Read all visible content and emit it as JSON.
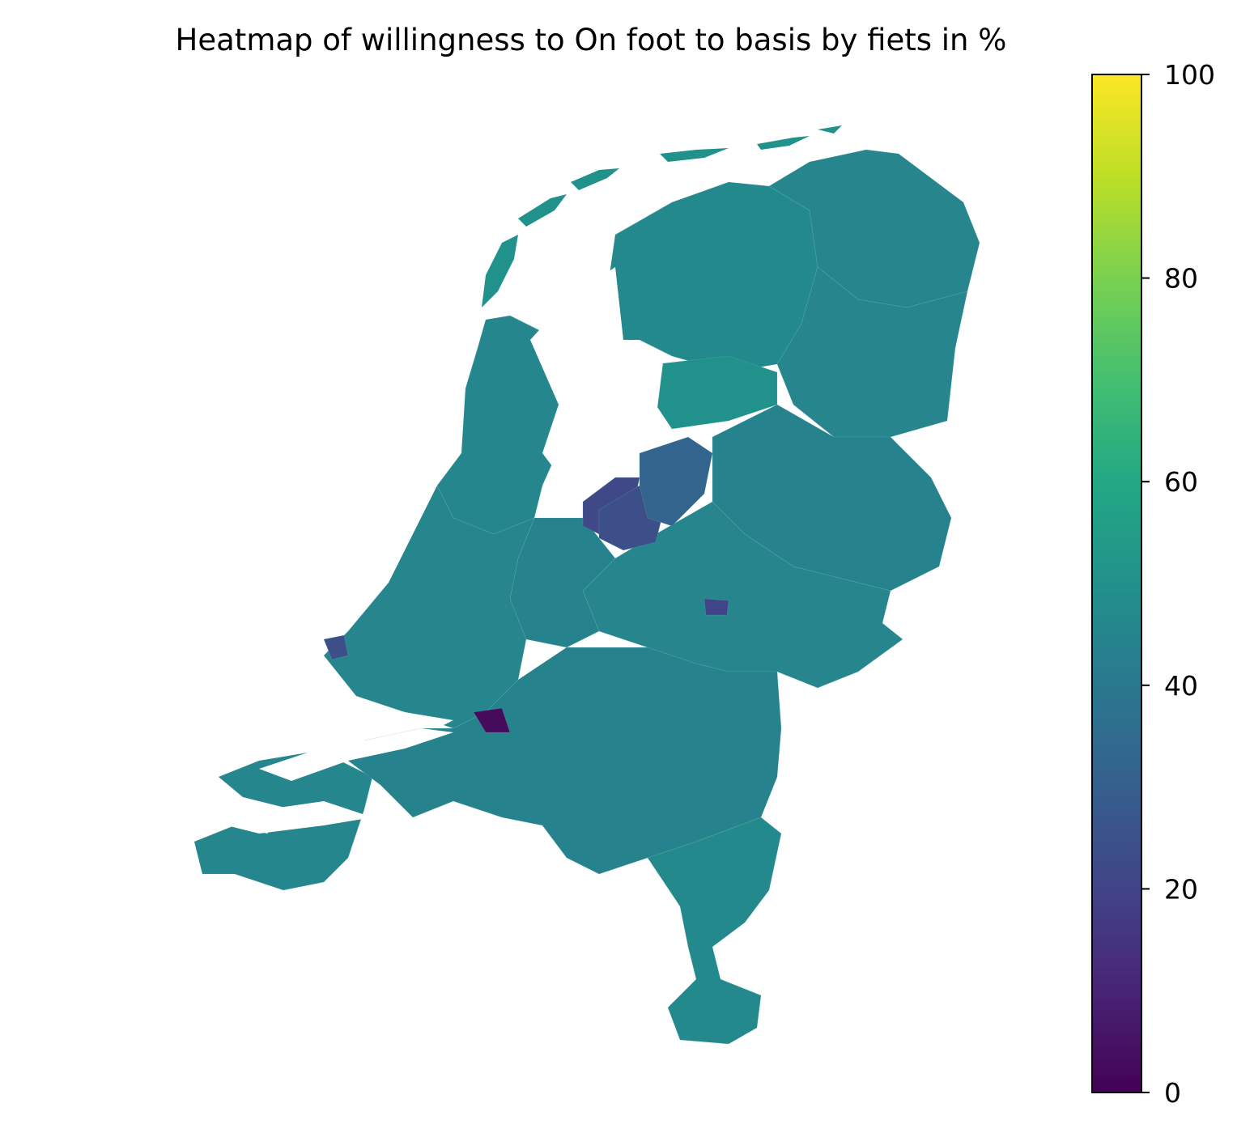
{
  "chart_data": {
    "type": "heatmap",
    "title": "Heatmap of willingness to On foot to basis by fiets in %",
    "colormap": "viridis",
    "colorbar": {
      "range": [
        0,
        100
      ],
      "ticks": [
        0,
        20,
        40,
        60,
        80,
        100
      ],
      "tick_labels": [
        "0",
        "20",
        "40",
        "60",
        "80",
        "100"
      ],
      "placement": "right"
    },
    "typical_value_range": [
      40,
      55
    ],
    "regions": [
      {
        "area": "Noord-Holland",
        "value": 46
      },
      {
        "area": "Friesland",
        "value": 47
      },
      {
        "area": "Groningen",
        "value": 45
      },
      {
        "area": "Drenthe",
        "value": 45
      },
      {
        "area": "Overijssel",
        "value": 44
      },
      {
        "area": "Gelderland",
        "value": 45
      },
      {
        "area": "Utrecht",
        "value": 44
      },
      {
        "area": "Zuid-Holland",
        "value": 45
      },
      {
        "area": "Zeeland",
        "value": 46
      },
      {
        "area": "Noord-Brabant",
        "value": 44
      },
      {
        "area": "Limburg",
        "value": 47
      },
      {
        "area": "Noordoostpolder",
        "value": 50
      },
      {
        "area": "Flevoland west",
        "value": 22
      },
      {
        "area": "Flevoland centre",
        "value": 24
      },
      {
        "area": "Flevoland east",
        "value": 32
      },
      {
        "area": "Maasvlakte",
        "value": 24
      },
      {
        "area": "Biesbosch area",
        "value": 3
      },
      {
        "area": "Apeldoorn area",
        "value": 20
      }
    ],
    "wadden_islands_value": 50
  }
}
